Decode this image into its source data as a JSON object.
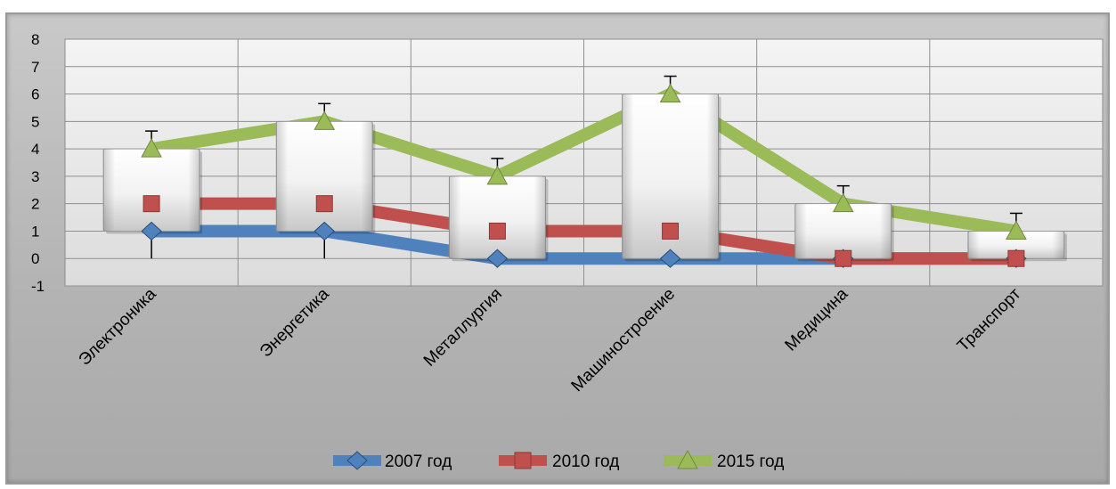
{
  "chart_data": {
    "type": "line",
    "categories": [
      "Электроника",
      "Энергетика",
      "Металлургия",
      "Машиностроение",
      "Медицина",
      "Транспорт"
    ],
    "series": [
      {
        "name": "2007 год",
        "values": [
          1,
          1,
          0,
          0,
          0,
          0
        ],
        "color": "#4f81bd",
        "marker": "diamond"
      },
      {
        "name": "2010 год",
        "values": [
          2,
          2,
          1,
          1,
          0,
          0
        ],
        "color": "#c0504d",
        "marker": "square"
      },
      {
        "name": "2015 год",
        "values": [
          4,
          5,
          3,
          6,
          2,
          1
        ],
        "color": "#9bbb59",
        "marker": "triangle"
      }
    ],
    "up_down_bars": true,
    "error_bars": true,
    "ylim": [
      -1,
      8
    ],
    "yticks": [
      "8",
      "7",
      "6",
      "5",
      "4",
      "3",
      "2",
      "1",
      "0",
      "-1"
    ],
    "grid": true,
    "legend_position": "bottom"
  }
}
